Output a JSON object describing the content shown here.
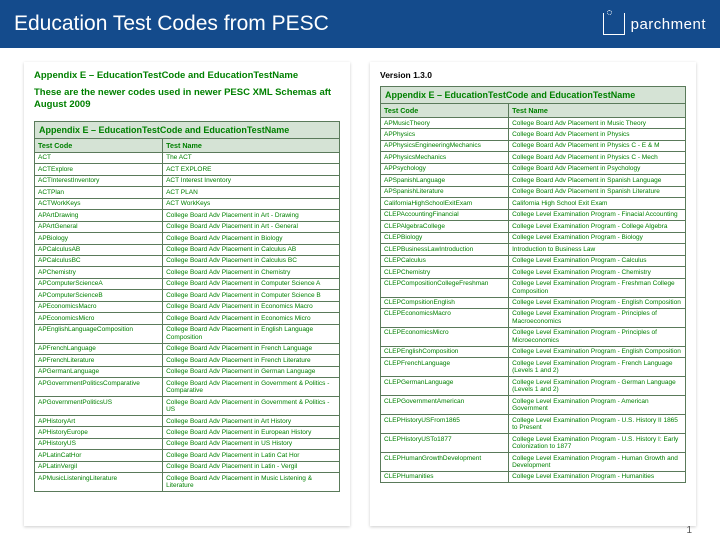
{
  "header": {
    "title": "Education Test Codes from PESC",
    "logo_text": "parchment"
  },
  "left": {
    "appendix_title": "Appendix E – EducationTestCode and EducationTestName",
    "intro": "These are the newer codes used in newer PESC XML Schemas aft August 2009",
    "caption": "Appendix E – EducationTestCode and EducationTestName",
    "col1": "Test Code",
    "col2": "Test Name",
    "rows": [
      [
        "ACT",
        "The ACT"
      ],
      [
        "ACTExplore",
        "ACT EXPLORE"
      ],
      [
        "ACTInterestInventory",
        "ACT Interest Inventory"
      ],
      [
        "ACTPlan",
        "ACT PLAN"
      ],
      [
        "ACTWorkKeys",
        "ACT WorkKeys"
      ],
      [
        "APArtDrawing",
        "College Board Adv Placement in Art - Drawing"
      ],
      [
        "APArtGeneral",
        "College Board Adv Placement in Art - General"
      ],
      [
        "APBiology",
        "College Board Adv Placement in Biology"
      ],
      [
        "APCalculusAB",
        "College Board Adv Placement in Calculus AB"
      ],
      [
        "APCalculusBC",
        "College Board Adv Placement in Calculus BC"
      ],
      [
        "APChemistry",
        "College Board Adv Placement in Chemistry"
      ],
      [
        "APComputerScienceA",
        "College Board Adv Placement in Computer Science A"
      ],
      [
        "APComputerScienceB",
        "College Board Adv Placement in Computer Science B"
      ],
      [
        "APEconomicsMacro",
        "College Board Adv Placement in Economics Macro"
      ],
      [
        "APEconomicsMicro",
        "College Board Adv Placement in Economics Micro"
      ],
      [
        "APEnglishLanguageComposition",
        "College Board Adv Placement in English Language Composition"
      ],
      [
        "APFrenchLanguage",
        "College Board Adv Placement in French Language"
      ],
      [
        "APFrenchLiterature",
        "College Board Adv Placement in French Literature"
      ],
      [
        "APGermanLanguage",
        "College Board Adv Placement in German Language"
      ],
      [
        "APGovernmentPoliticsComparative",
        "College Board Adv Placement in Government & Politics - Comparative"
      ],
      [
        "APGovernmentPoliticsUS",
        "College Board Adv Placement in Government & Politics - US"
      ],
      [
        "APHistoryArt",
        "College Board Adv Placement in Art History"
      ],
      [
        "APHistoryEurope",
        "College Board Adv Placement in European History"
      ],
      [
        "APHistoryUS",
        "College Board Adv Placement in US History"
      ],
      [
        "APLatinCatHor",
        "College Board Adv Placement in Latin Cat Hor"
      ],
      [
        "APLatinVergil",
        "College Board Adv Placement in Latin - Vergil"
      ],
      [
        "APMusicListeningLiterature",
        "College Board Adv Placement in Music Listening & Literature"
      ]
    ]
  },
  "right": {
    "version": "Version 1.3.0",
    "caption": "Appendix E – EducationTestCode and EducationTestName",
    "col1": "Test Code",
    "col2": "Test Name",
    "rows": [
      [
        "APMusicTheory",
        "College Board Adv Placement in Music Theory"
      ],
      [
        "APPhysics",
        "College Board Adv Placement in Physics"
      ],
      [
        "APPhysicsEngineeringMechanics",
        "College Board Adv Placement in Physics C - E & M"
      ],
      [
        "APPhysicsMechanics",
        "College Board Adv Placement in Physics C - Mech"
      ],
      [
        "APPsychology",
        "College Board Adv Placement in Psychology"
      ],
      [
        "APSpanishLanguage",
        "College Board Adv Placement in Spanish Language"
      ],
      [
        "APSpanishLiterature",
        "College Board Adv Placement in Spanish Literature"
      ],
      [
        "CaliforniaHighSchoolExitExam",
        "California High School Exit Exam"
      ],
      [
        "CLEPAccountingFinancial",
        "College Level Examination Program - Finacial Accounting"
      ],
      [
        "CLEPAlgebraCollege",
        "College Level Examination Program - College Algebra"
      ],
      [
        "CLEPBiology",
        "College Level Examination Program - Biology"
      ],
      [
        "CLEPBusinessLawIntroduction",
        "Introduction to Business Law"
      ],
      [
        "CLEPCalculus",
        "College Level Examination Program - Calculus"
      ],
      [
        "CLEPChemistry",
        "College Level Examination Program - Chemistry"
      ],
      [
        "CLEPCompositionCollegeFreshman",
        "College Level Examination Program - Freshman College Composition"
      ],
      [
        "CLEPCompsitionEnglish",
        "College Level Examination Program - English Composition"
      ],
      [
        "CLEPEconomicsMacro",
        "College Level Examination Program - Principles of Macroeconomics"
      ],
      [
        "CLEPEconomicsMicro",
        "College Level Examination Program - Principles of Microeconomics"
      ],
      [
        "CLEPEnglishComposition",
        "College Level Examination Program - English Composition"
      ],
      [
        "CLEPFrenchLanguage",
        "College Level Examination Program - French Language (Levels 1 and 2)"
      ],
      [
        "CLEPGermanLanguage",
        "College Level Examination Program - German Language (Levels 1 and 2)"
      ],
      [
        "CLEPGovernmentAmerican",
        "College Level Examination Program - American Government"
      ],
      [
        "CLEPHistoryUSFrom1865",
        "College Level Examination Program - U.S. History II 1865 to Present"
      ],
      [
        "CLEPHistoryUSTo1877",
        "College Level Examination Program - U.S. History I: Early Colonization to 1877"
      ],
      [
        "CLEPHumanGrowthDevelopment",
        "College Level Examination Program - Human Growth and Development"
      ],
      [
        "CLEPHumanities",
        "College Level Examination Program - Humanities"
      ]
    ]
  },
  "page_number": "1"
}
